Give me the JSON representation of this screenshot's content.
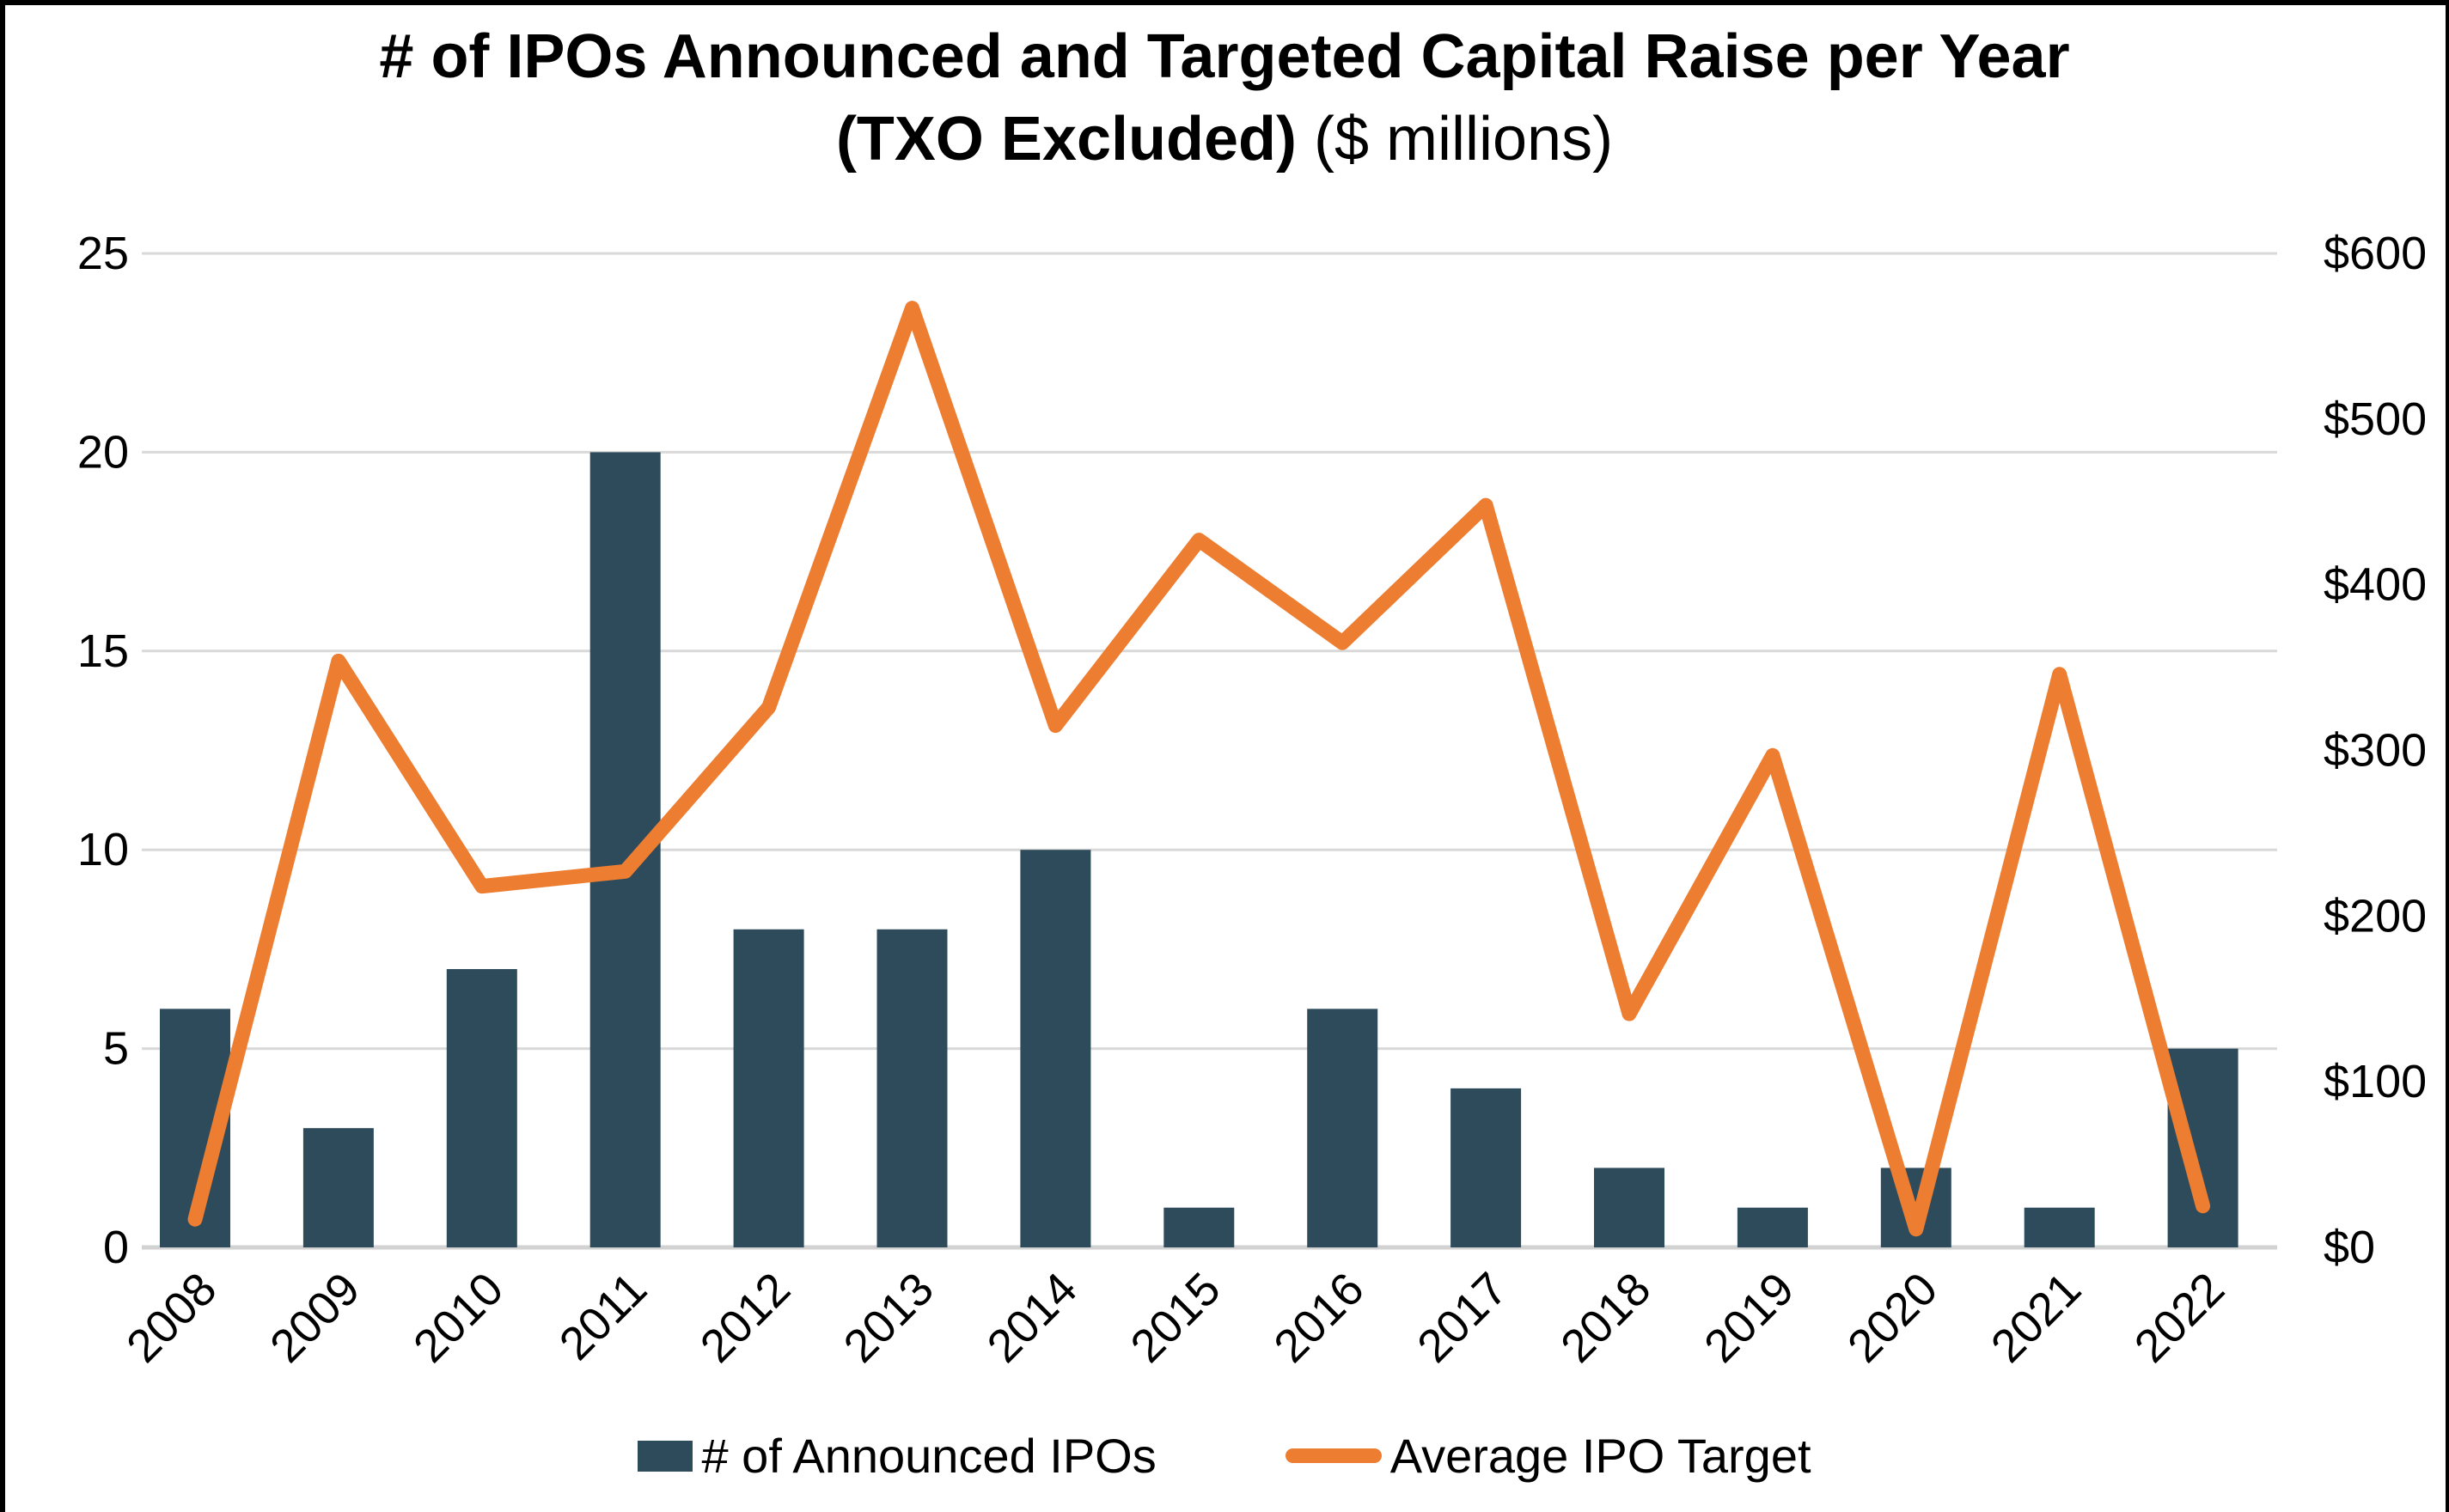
{
  "title": {
    "line1": "# of IPOs Announced and Targeted Capital Raise per Year",
    "line2_bold": "(TXO Excluded)",
    "line2_regular": " ($ millions)"
  },
  "legend": {
    "items": [
      {
        "label": "# of Announced IPOs",
        "swatch": "bar-swatch"
      },
      {
        "label": "Average IPO Target",
        "swatch": "line-swatch"
      }
    ]
  },
  "colors": {
    "bar": "#2E4B5C",
    "line": "#ED7D31",
    "gridline": "#D9D9D9",
    "baseline": "#D2D2D2",
    "text": "#000000",
    "background": "#FFFFFF",
    "border": "#000000"
  },
  "chart_data": {
    "type": "bar",
    "subtype": "combo-bar-line",
    "title": "# of IPOs Announced and Targeted Capital Raise per Year (TXO Excluded) ($ millions)",
    "categories": [
      "2008",
      "2009",
      "2010",
      "2011",
      "2012",
      "2013",
      "2014",
      "2015",
      "2016",
      "2017",
      "2018",
      "2019",
      "2020",
      "2021",
      "2022"
    ],
    "series": [
      {
        "name": "# of Announced IPOs",
        "type": "bar",
        "axis": "left",
        "values": [
          6,
          3,
          7,
          20,
          8,
          8,
          10,
          1,
          6,
          4,
          2,
          1,
          2,
          1,
          5
        ]
      },
      {
        "name": "Average IPO Target",
        "type": "line",
        "axis": "right",
        "values": [
          17,
          354,
          218,
          227,
          326,
          567,
          315,
          427,
          365,
          448,
          141,
          297,
          11,
          346,
          25
        ]
      }
    ],
    "left_axis": {
      "min": 0,
      "max": 25,
      "tick_step": 5,
      "tick_labels": [
        "0",
        "5",
        "10",
        "15",
        "20",
        "25"
      ]
    },
    "right_axis": {
      "min": 0,
      "max": 600,
      "tick_step": 100,
      "tick_labels": [
        "$0",
        "$100",
        "$200",
        "$300",
        "$400",
        "$500",
        "$600"
      ]
    },
    "grid": true,
    "x_label_rotation_deg": 45,
    "legend_position": "bottom"
  }
}
